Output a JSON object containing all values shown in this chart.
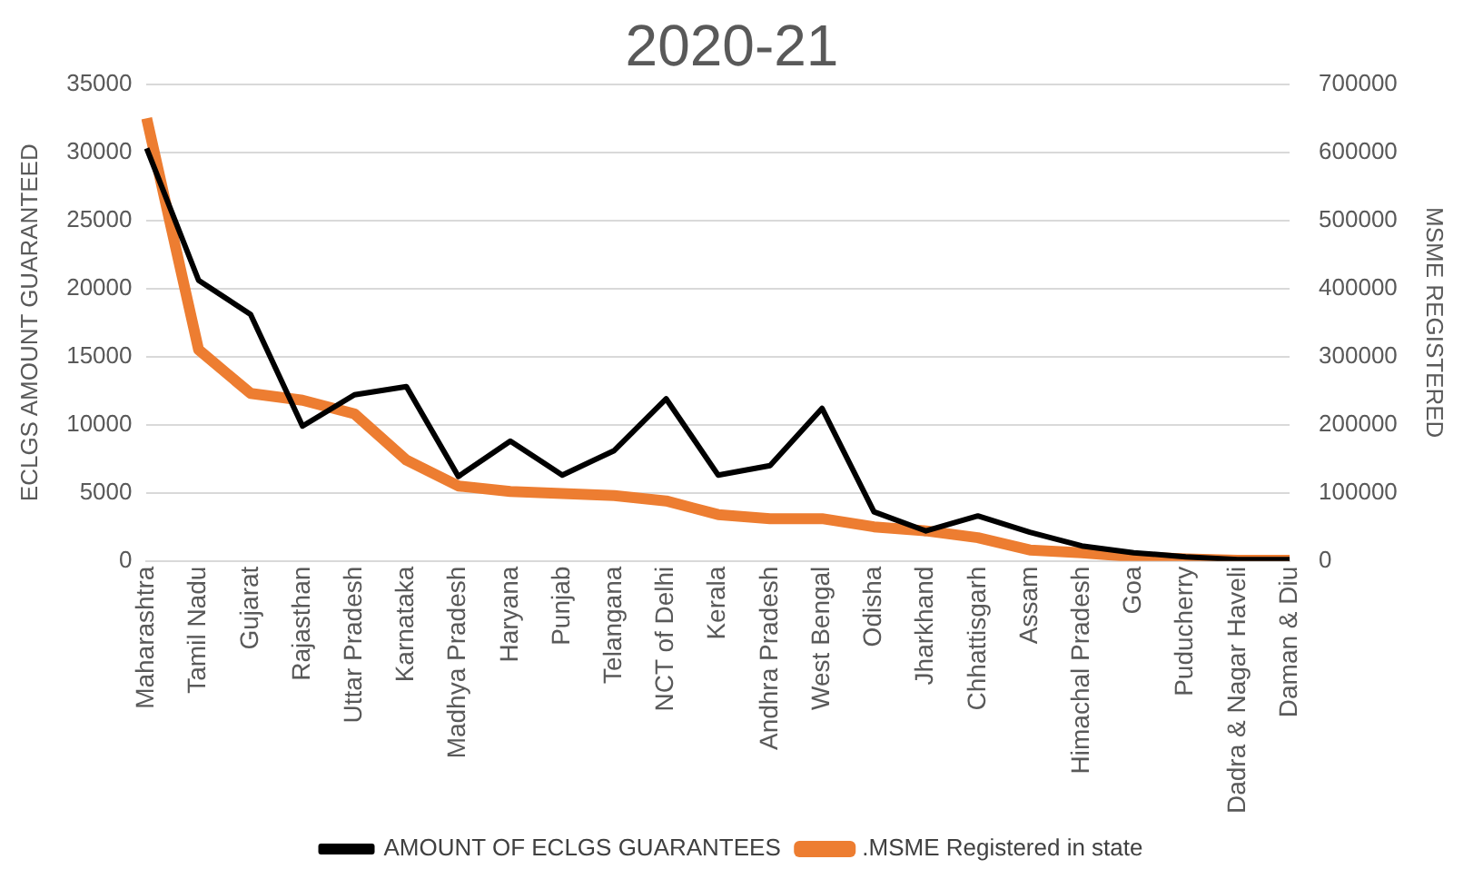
{
  "chart_data": {
    "type": "line",
    "title": "2020-21",
    "ylabel": "ECLGS AMOUNT GUARANTEED",
    "y2label": "MSME REGISTERED",
    "categories": [
      "Maharashtra",
      "Tamil Nadu",
      "Gujarat",
      "Rajasthan",
      "Uttar Pradesh",
      "Karnataka",
      "Madhya Pradesh",
      "Haryana",
      "Punjab",
      "Telangana",
      "NCT of Delhi",
      "Kerala",
      "Andhra Pradesh",
      "West Bengal",
      "Odisha",
      "Jharkhand",
      "Chhattisgarh",
      "Assam",
      "Himachal Pradesh",
      "Goa",
      "Puducherry",
      "Dadra & Nagar Haveli",
      "Daman & Diu"
    ],
    "series": [
      {
        "name": "AMOUNT OF ECLGS GUARANTEES",
        "color": "#000000",
        "values": [
          30300,
          20600,
          18100,
          9900,
          12200,
          12800,
          6200,
          8800,
          6300,
          8100,
          11900,
          6300,
          7000,
          11200,
          3600,
          2200,
          3300,
          2100,
          1100,
          600,
          300,
          100,
          100
        ]
      },
      {
        "name": ".MSME Registered in state",
        "color": "#ed7d31",
        "axis": "y2",
        "values": [
          650000,
          310000,
          246000,
          236000,
          216000,
          148000,
          110000,
          102000,
          99000,
          96000,
          88000,
          68000,
          62000,
          62000,
          50000,
          44000,
          34000,
          16000,
          12000,
          6000,
          3000,
          1000,
          1000
        ]
      }
    ],
    "ylim": [
      0,
      35000
    ],
    "yticks": [
      0,
      5000,
      10000,
      15000,
      20000,
      25000,
      30000,
      35000
    ],
    "y2lim": [
      0,
      700000
    ],
    "y2ticks": [
      0,
      100000,
      200000,
      300000,
      400000,
      500000,
      600000,
      700000
    ],
    "grid": "y",
    "legend": "bottom",
    "marker": "none",
    "line_style": "solid"
  }
}
